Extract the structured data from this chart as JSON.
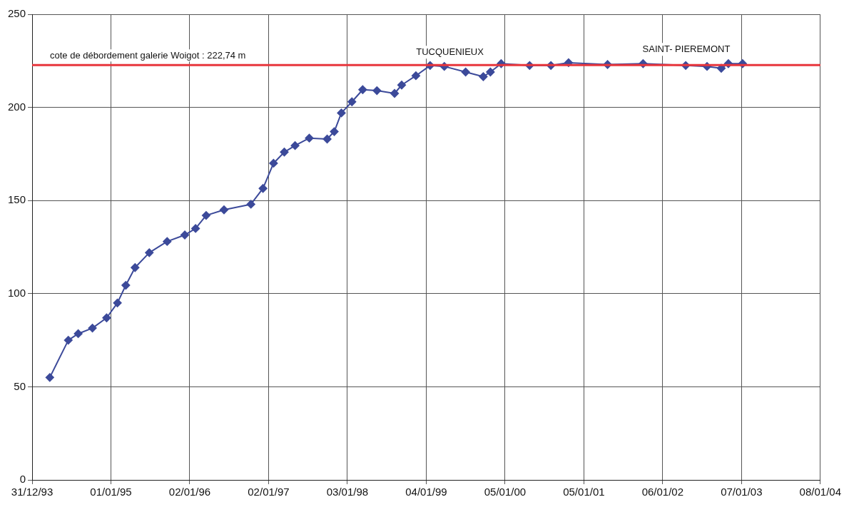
{
  "chart_data": {
    "type": "line",
    "x": [
      "1994-03-23",
      "1994-06-17",
      "1994-08-02",
      "1994-10-07",
      "1994-12-12",
      "1995-01-31",
      "1995-03-11",
      "1995-04-23",
      "1995-06-28",
      "1995-09-19",
      "1995-12-10",
      "1996-01-29",
      "1996-03-18",
      "1996-06-09",
      "1996-10-12",
      "1996-12-07",
      "1997-01-25",
      "1997-03-16",
      "1997-05-05",
      "1997-07-10",
      "1997-10-01",
      "1997-11-03",
      "1997-12-06",
      "1998-01-24",
      "1998-03-15",
      "1998-05-20",
      "1998-08-10",
      "1998-09-12",
      "1998-11-17",
      "1999-01-22",
      "1999-03-29",
      "1999-07-06",
      "1999-09-26",
      "1999-10-29",
      "1999-12-18",
      "2000-04-28",
      "2000-08-05",
      "2000-10-26",
      "2001-04-25",
      "2001-10-07",
      "2002-04-23",
      "2002-07-31",
      "2002-10-05",
      "2002-11-07",
      "2003-01-12"
    ],
    "series": [
      {
        "color": "#3c4a9a",
        "values": [
          55,
          75,
          78.5,
          81.5,
          87,
          95,
          104.5,
          114,
          122,
          128,
          131.5,
          135,
          142,
          145,
          148,
          156.5,
          170,
          176,
          179.5,
          183.5,
          183,
          187,
          197,
          203,
          209.5,
          209,
          207.5,
          212,
          217,
          222.5,
          222,
          219,
          216.5,
          219,
          223.5,
          222.5,
          222.5,
          224,
          223,
          223.5,
          222.5,
          222,
          221,
          223.5,
          223.5
        ]
      }
    ],
    "xlim": [
      "1993-12-31",
      "2004-01-08"
    ],
    "xticks": [
      {
        "value": "1993-12-31",
        "label": "31/12/93"
      },
      {
        "value": "1995-01-01",
        "label": "01/01/95"
      },
      {
        "value": "1996-01-02",
        "label": "02/01/96"
      },
      {
        "value": "1997-01-02",
        "label": "02/01/97"
      },
      {
        "value": "1998-01-03",
        "label": "03/01/98"
      },
      {
        "value": "1999-01-04",
        "label": "04/01/99"
      },
      {
        "value": "2000-01-05",
        "label": "05/01/00"
      },
      {
        "value": "2001-01-05",
        "label": "05/01/01"
      },
      {
        "value": "2002-01-06",
        "label": "06/01/02"
      },
      {
        "value": "2003-01-07",
        "label": "07/01/03"
      },
      {
        "value": "2004-01-08",
        "label": "08/01/04"
      }
    ],
    "ylim": [
      0,
      250
    ],
    "yticks": [
      0,
      50,
      100,
      150,
      200,
      250
    ],
    "grid": true,
    "marker": "diamond",
    "line_style": "solid",
    "ref_lines": [
      {
        "axis": "y",
        "value": 222.74,
        "label": "cote de débordement galerie Woigot : 222,74 m",
        "color": "#e8363c"
      }
    ],
    "annotations": [
      "TUCQUENIEUX",
      "SAINT- PIEREMONT"
    ]
  }
}
